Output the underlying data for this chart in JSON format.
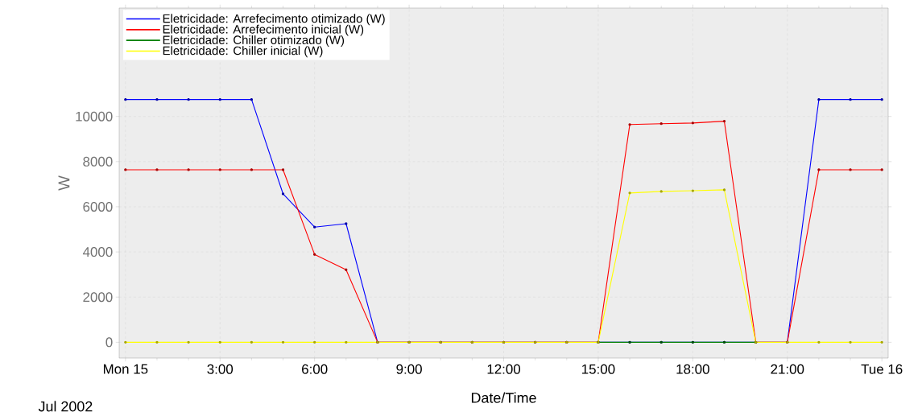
{
  "chart_data": {
    "type": "line",
    "xlabel": "Date/Time",
    "ylabel": "W",
    "annotations": [
      "Jul 2002"
    ],
    "x": [
      0,
      1,
      2,
      3,
      4,
      5,
      6,
      7,
      8,
      9,
      10,
      11,
      12,
      13,
      14,
      15,
      16,
      17,
      18,
      19,
      20,
      21,
      22,
      23,
      24
    ],
    "series": [
      {
        "name": "Eletricidade: Arrefecimento otimizado (W)",
        "color": "#0000ff",
        "values": [
          10750,
          10750,
          10750,
          10750,
          10750,
          6570,
          5100,
          5250,
          0,
          0,
          0,
          0,
          0,
          0,
          0,
          0,
          0,
          0,
          0,
          0,
          0,
          0,
          10750,
          10750,
          10750
        ]
      },
      {
        "name": "Eletricidade: Arrefecimento inicial (W)",
        "color": "#ff0000",
        "values": [
          7640,
          7640,
          7640,
          7640,
          7640,
          7640,
          3890,
          3210,
          0,
          0,
          0,
          0,
          0,
          0,
          0,
          0,
          9640,
          9680,
          9710,
          9790,
          0,
          0,
          7640,
          7640,
          7640
        ]
      },
      {
        "name": "Eletricidade: Chiller otimizado (W)",
        "color": "#008000",
        "values": [
          null,
          null,
          null,
          null,
          null,
          null,
          null,
          null,
          null,
          null,
          null,
          null,
          null,
          null,
          null,
          0,
          0,
          0,
          0,
          0,
          0,
          null,
          null,
          null,
          null
        ]
      },
      {
        "name": "Eletricidade: Chiller inicial (W)",
        "color": "#ffff00",
        "values": [
          0,
          0,
          0,
          0,
          0,
          0,
          0,
          0,
          0,
          0,
          0,
          0,
          0,
          0,
          0,
          0,
          6610,
          6680,
          6710,
          6750,
          0,
          0,
          0,
          0,
          0
        ]
      }
    ],
    "xlim": [
      -0.2,
      24.2
    ],
    "ylim": [
      -700,
      14800
    ],
    "xticks": [
      {
        "value": 0,
        "label": "Mon 15"
      },
      {
        "value": 1,
        "label": null
      },
      {
        "value": 2,
        "label": null
      },
      {
        "value": 3,
        "label": "3:00"
      },
      {
        "value": 4,
        "label": null
      },
      {
        "value": 5,
        "label": null
      },
      {
        "value": 6,
        "label": "6:00"
      },
      {
        "value": 7,
        "label": null
      },
      {
        "value": 8,
        "label": null
      },
      {
        "value": 9,
        "label": "9:00"
      },
      {
        "value": 10,
        "label": null
      },
      {
        "value": 11,
        "label": null
      },
      {
        "value": 12,
        "label": "12:00"
      },
      {
        "value": 13,
        "label": null
      },
      {
        "value": 14,
        "label": null
      },
      {
        "value": 15,
        "label": "15:00"
      },
      {
        "value": 16,
        "label": null
      },
      {
        "value": 17,
        "label": null
      },
      {
        "value": 18,
        "label": "18:00"
      },
      {
        "value": 19,
        "label": null
      },
      {
        "value": 20,
        "label": null
      },
      {
        "value": 21,
        "label": "21:00"
      },
      {
        "value": 22,
        "label": null
      },
      {
        "value": 23,
        "label": null
      },
      {
        "value": 24,
        "label": "Tue 16"
      }
    ],
    "yticks": [
      0,
      2000,
      4000,
      6000,
      8000,
      10000
    ],
    "grid": true,
    "legend": "top left",
    "marker": "circle",
    "line_style": "solid"
  }
}
